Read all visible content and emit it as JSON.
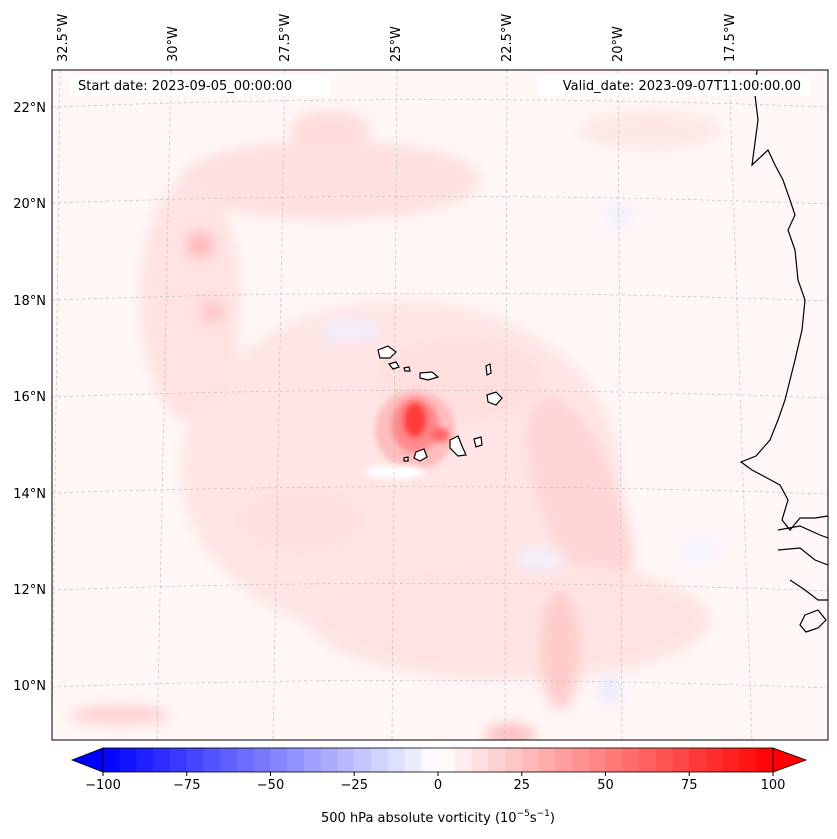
{
  "header": {
    "start_date": "Start date: 2023-09-05_00:00:00",
    "valid_date": "Valid_date: 2023-09-07T11:00:00.00"
  },
  "longitude_labels": [
    "32.5°W",
    "30°W",
    "27.5°W",
    "25°W",
    "22.5°W",
    "20°W",
    "17.5°W"
  ],
  "latitude_labels": [
    "22°N",
    "20°N",
    "18°N",
    "16°N",
    "14°N",
    "12°N",
    "10°N"
  ],
  "colorbar": {
    "ticks": [
      "−100",
      "−75",
      "−50",
      "−25",
      "0",
      "25",
      "50",
      "75",
      "100"
    ],
    "tick_values": [
      -100,
      -75,
      -50,
      -25,
      0,
      25,
      50,
      75,
      100
    ],
    "range": [
      -100,
      100
    ],
    "step": 5,
    "label": "500 hPa absolute vorticity (10",
    "label_exp1": "−5",
    "label_mid": "s",
    "label_exp2": "−1",
    "label_end": ")"
  },
  "colors": {
    "negative_max": "#0000ff",
    "zero": "#ffffff",
    "positive_max": "#ff0000",
    "coast": "#000000",
    "grid": "#b8b8b8"
  },
  "map": {
    "lon_range": [
      -33,
      -16
    ],
    "lat_range": [
      9,
      23
    ],
    "projection": "lambert_conformal_like"
  }
}
